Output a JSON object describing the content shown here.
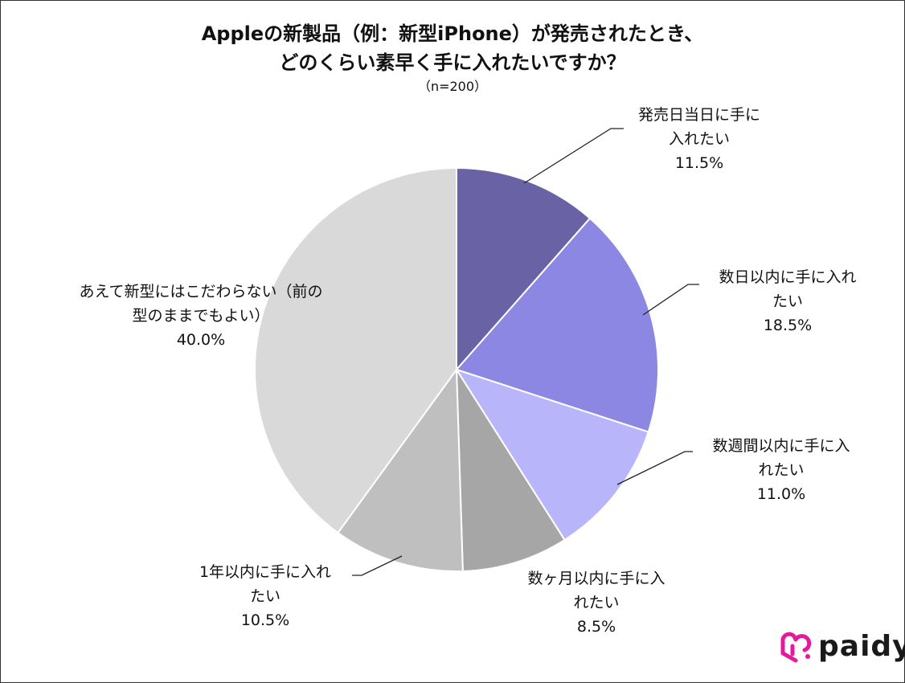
{
  "chart_data": {
    "type": "pie",
    "title": "Appleの新製品（例：新型iPhone）が発売されたとき、",
    "title_line2": "どのくらい素早く手に入れたいですか？",
    "subtitle": "（n=200）",
    "start": "top",
    "direction": "clockwise",
    "slices": [
      {
        "label_line1": "発売日当日に手に",
        "label_line2": "入れたい",
        "value": 11.5,
        "value_label": "11.5%",
        "color": "#6963a6"
      },
      {
        "label_line1": "数日以内に手に入れ",
        "label_line2": "たい",
        "value": 18.5,
        "value_label": "18.5%",
        "color": "#8b87e2"
      },
      {
        "label_line1": "数週間以内に手に入",
        "label_line2": "れたい",
        "value": 11.0,
        "value_label": "11.0%",
        "color": "#b8b5fb"
      },
      {
        "label_line1": "数ヶ月以内に手に入",
        "label_line2": "れたい",
        "value": 8.5,
        "value_label": "8.5%",
        "color": "#a6a6a6"
      },
      {
        "label_line1": "1年以内に手に入れ",
        "label_line2": "たい",
        "value": 10.5,
        "value_label": "10.5%",
        "color": "#bfbfbf"
      },
      {
        "label_line1": "あえて新型にはこだわらない（前の",
        "label_line2": "型のままでもよい）",
        "value": 40.0,
        "value_label": "40.0%",
        "color": "#d9d9d9"
      }
    ]
  },
  "logo": {
    "text": "paidy",
    "color": "#e5199c"
  }
}
